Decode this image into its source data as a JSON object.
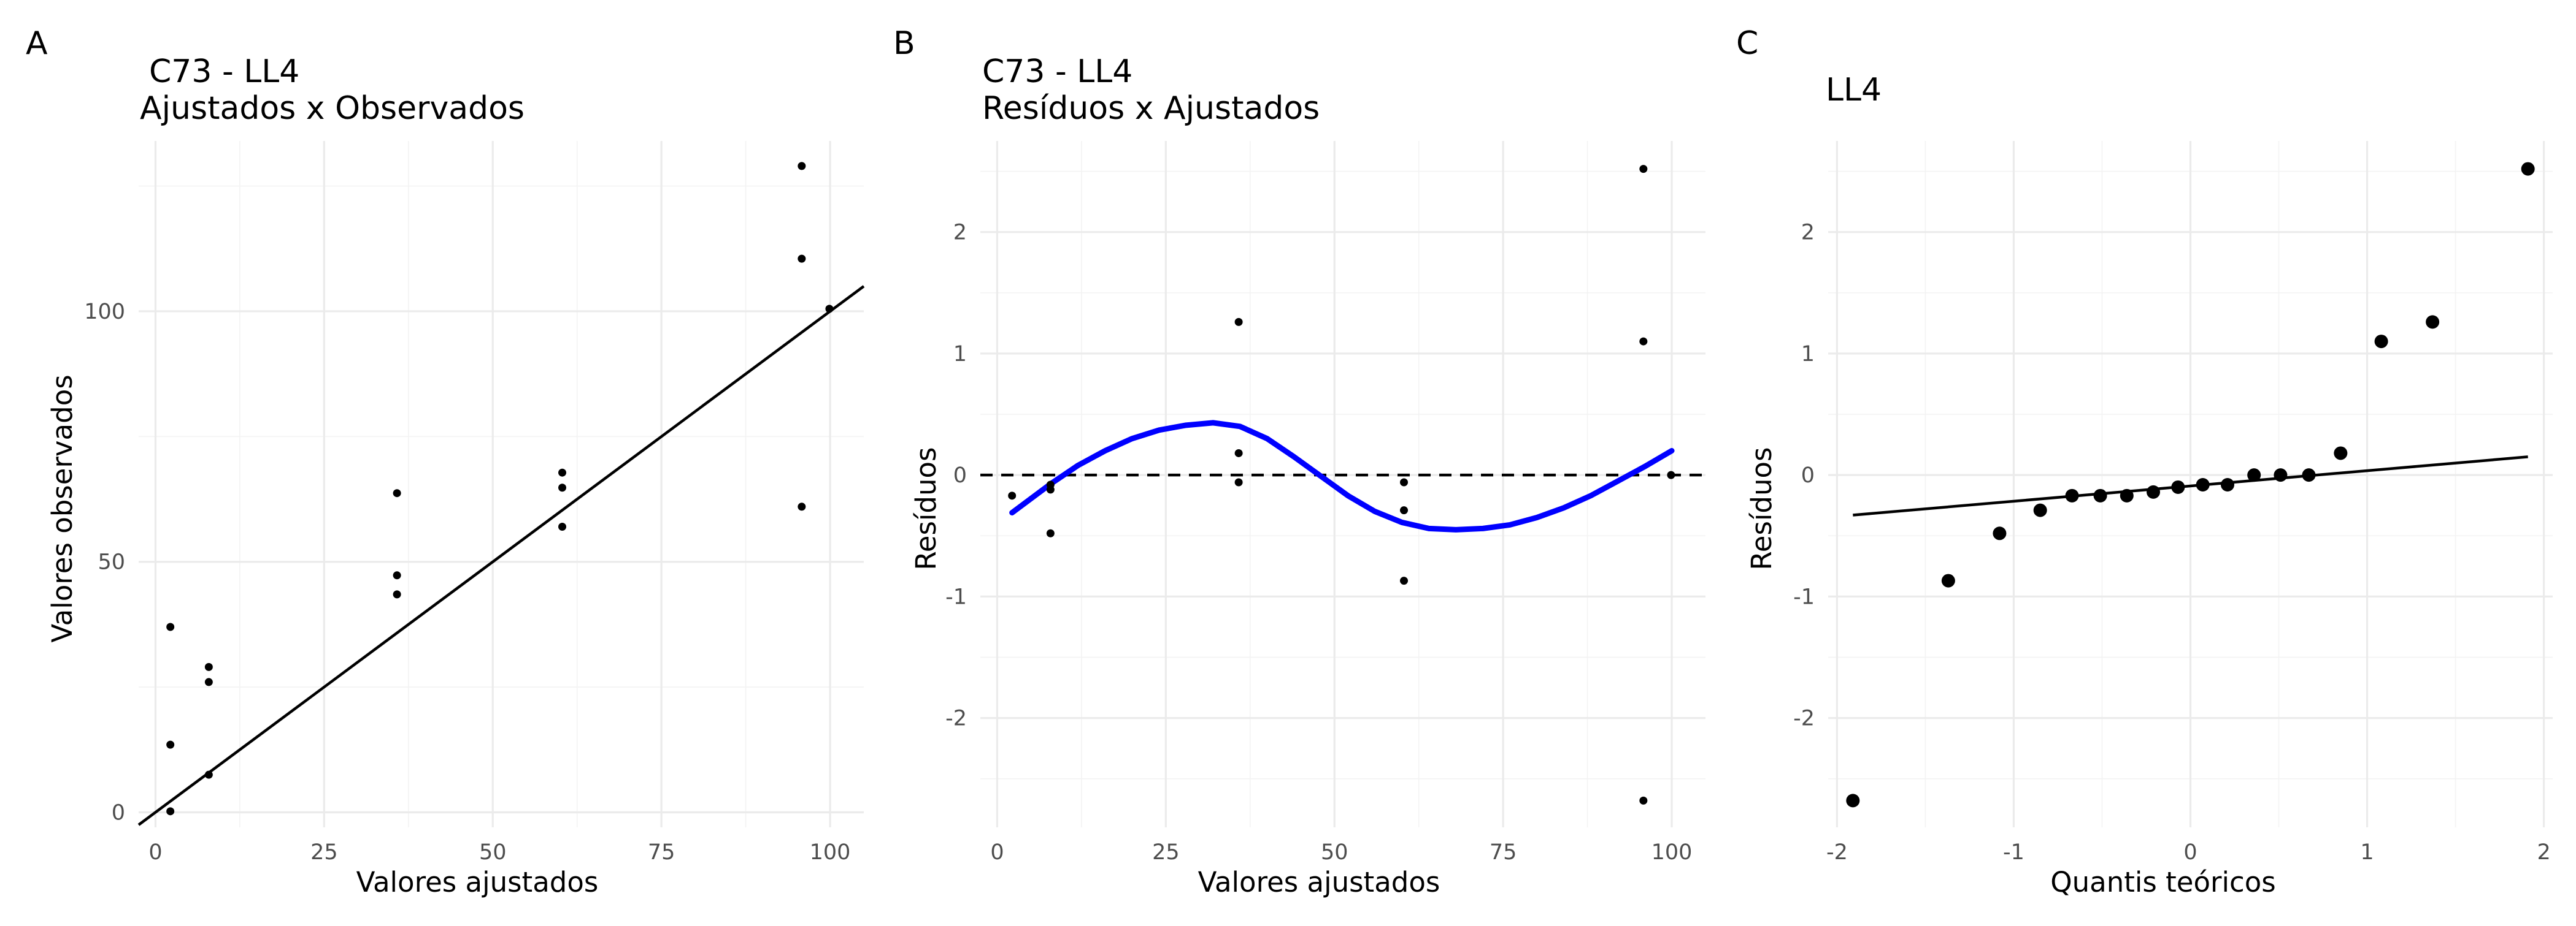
{
  "chart_data": [
    {
      "panel_tag": "A",
      "type": "scatter",
      "title_line1": "C73 - LL4",
      "title_line2": "Ajustados x Observados",
      "xlabel": "Valores ajustados",
      "ylabel": "Valores observados",
      "xlim": [
        -2.5,
        105
      ],
      "ylim": [
        -3,
        134
      ],
      "xticks": [
        0,
        25,
        50,
        75,
        100
      ],
      "xtick_labels": [
        "0",
        "25",
        "50",
        "75",
        "100"
      ],
      "yticks": [
        0,
        50,
        100
      ],
      "ytick_labels": [
        "0",
        "50",
        "100"
      ],
      "grid": true,
      "points": {
        "x": [
          2.2,
          2.2,
          2.2,
          7.9,
          7.9,
          7.9,
          35.8,
          35.8,
          35.8,
          60.3,
          60.3,
          60.3,
          95.8,
          95.8,
          95.8,
          99.9
        ],
        "y": [
          0.2,
          13.5,
          37,
          7.5,
          26,
          29,
          43.5,
          47.3,
          63.7,
          57,
          64.8,
          67.8,
          61,
          110.5,
          129,
          100.5
        ]
      },
      "reference_line": {
        "slope": 1,
        "intercept": 0,
        "style": "solid",
        "color": "#000000"
      }
    },
    {
      "panel_tag": "B",
      "type": "scatter",
      "title_line1": "C73 - LL4",
      "title_line2": "Resíduos x Ajustados",
      "xlabel": "Valores ajustados",
      "ylabel": "Resíduos",
      "xlim": [
        -2.5,
        105
      ],
      "ylim": [
        -2.9,
        2.75
      ],
      "xticks": [
        0,
        25,
        50,
        75,
        100
      ],
      "xtick_labels": [
        "0",
        "25",
        "50",
        "75",
        "100"
      ],
      "yticks": [
        -2,
        -1,
        0,
        1,
        2
      ],
      "ytick_labels": [
        "-2",
        "-1",
        "0",
        "1",
        "2"
      ],
      "grid": true,
      "points": {
        "x": [
          2.2,
          7.9,
          7.9,
          7.9,
          35.8,
          35.8,
          35.8,
          60.3,
          60.3,
          60.3,
          95.8,
          95.8,
          95.8,
          99.9
        ],
        "y": [
          -0.17,
          -0.12,
          -0.48,
          -0.08,
          1.26,
          0.18,
          -0.06,
          -0.06,
          -0.29,
          -0.87,
          2.52,
          1.1,
          -2.68,
          0.0
        ]
      },
      "smooth_curve": {
        "color": "#0000ff",
        "x": [
          2.2,
          8,
          12,
          16,
          20,
          24,
          28,
          32,
          36,
          40,
          44,
          48,
          52,
          56,
          60,
          64,
          68,
          72,
          76,
          80,
          84,
          88,
          92,
          96,
          100
        ],
        "y": [
          -0.31,
          -0.07,
          0.08,
          0.2,
          0.3,
          0.37,
          0.41,
          0.43,
          0.4,
          0.3,
          0.15,
          -0.01,
          -0.17,
          -0.3,
          -0.39,
          -0.44,
          -0.45,
          -0.44,
          -0.41,
          -0.35,
          -0.27,
          -0.17,
          -0.05,
          0.07,
          0.2
        ]
      },
      "reference_line": {
        "y": 0,
        "style": "dashed",
        "color": "#000000"
      }
    },
    {
      "panel_tag": "C",
      "type": "scatter",
      "title_line1": "LL4",
      "title_line2": "",
      "xlabel": "Quantis teóricos",
      "ylabel": "Resíduos",
      "xlim": [
        -2.05,
        2.05
      ],
      "ylim": [
        -2.9,
        2.75
      ],
      "xticks": [
        -2,
        -1,
        0,
        1,
        2
      ],
      "xtick_labels": [
        "-2",
        "-1",
        "0",
        "1",
        "2"
      ],
      "yticks": [
        -2,
        -1,
        0,
        1,
        2
      ],
      "ytick_labels": [
        "-2",
        "-1",
        "0",
        "1",
        "2"
      ],
      "grid": true,
      "points": {
        "x": [
          -1.91,
          -1.37,
          -1.08,
          -0.85,
          -0.67,
          -0.51,
          -0.36,
          -0.21,
          -0.07,
          0.07,
          0.21,
          0.36,
          0.51,
          0.67,
          0.85,
          1.08,
          1.37,
          1.91
        ],
        "y": [
          -2.68,
          -0.87,
          -0.48,
          -0.29,
          -0.17,
          -0.17,
          -0.17,
          -0.14,
          -0.1,
          -0.08,
          -0.08,
          0.0,
          0.0,
          0.0,
          0.18,
          1.1,
          1.26,
          2.52
        ]
      },
      "reference_line": {
        "x": [
          -1.91,
          1.91
        ],
        "y": [
          -0.33,
          0.15
        ],
        "style": "solid",
        "color": "#000000"
      }
    }
  ]
}
